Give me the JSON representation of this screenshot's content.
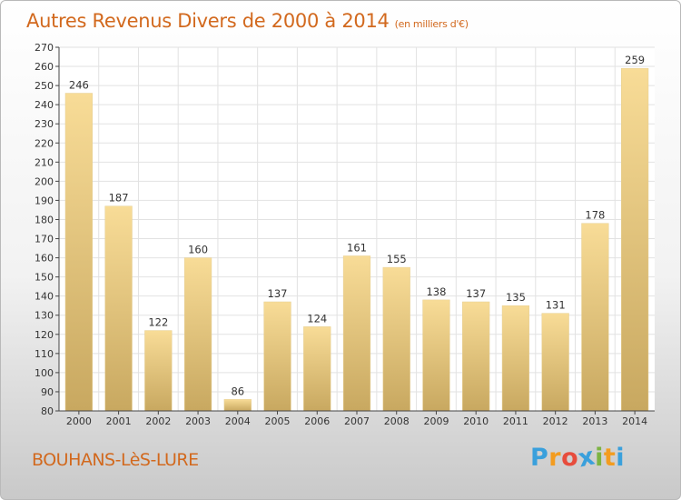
{
  "page": {
    "title_main": "Autres Revenus Divers de 2000 à 2014",
    "title_unit": "(en milliers d'€)",
    "commune": "BOUHANS-LèS-LURE",
    "brand_letters": [
      "P",
      "r",
      "o",
      "x",
      "i",
      "t",
      "i"
    ],
    "brand_colors": [
      "#3aa0dc",
      "#f39c1f",
      "#e74c3c",
      "#3aa0dc",
      "#7cb342",
      "#f39c1f",
      "#3aa0dc"
    ]
  },
  "chart_data": {
    "type": "bar",
    "title": "Autres Revenus Divers de 2000 à 2014 (en milliers d'€)",
    "xlabel": "",
    "ylabel": "",
    "categories": [
      "2000",
      "2001",
      "2002",
      "2003",
      "2004",
      "2005",
      "2006",
      "2007",
      "2008",
      "2009",
      "2010",
      "2011",
      "2012",
      "2013",
      "2014"
    ],
    "values": [
      246,
      187,
      122,
      160,
      86,
      137,
      124,
      161,
      155,
      138,
      137,
      135,
      131,
      178,
      259
    ],
    "ylim": [
      80,
      270
    ],
    "yticks": [
      80,
      90,
      100,
      110,
      120,
      130,
      140,
      150,
      160,
      170,
      180,
      190,
      200,
      210,
      220,
      230,
      240,
      250,
      260,
      270
    ],
    "grid": true,
    "colors": {
      "bar_light": "#f8dc97",
      "bar_dark": "#c8a860",
      "grid": "#e2e2e2",
      "axis": "#444444"
    }
  }
}
